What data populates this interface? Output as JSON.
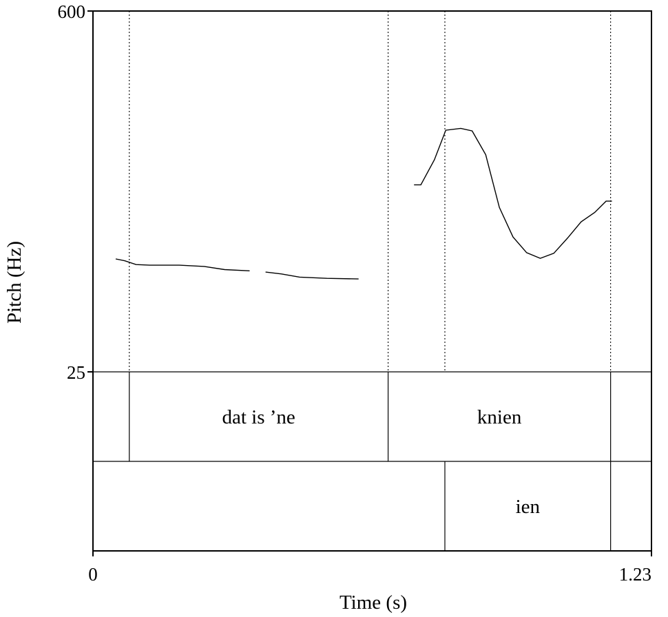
{
  "chart_data": {
    "type": "line",
    "xlabel": "Time (s)",
    "ylabel": "Pitch (Hz)",
    "xlim": [
      0,
      1.23
    ],
    "ylim": [
      25,
      600
    ],
    "xticks": [
      "0",
      "1.23"
    ],
    "yticks": [
      "25",
      "600"
    ],
    "series": [
      {
        "segments": [
          [
            [
              0.05,
              205
            ],
            [
              0.07,
              202
            ],
            [
              0.095,
              196
            ],
            [
              0.125,
              195
            ],
            [
              0.19,
              195
            ],
            [
              0.245,
              193
            ],
            [
              0.29,
              188
            ],
            [
              0.345,
              186
            ]
          ],
          [
            [
              0.38,
              184
            ],
            [
              0.415,
              181
            ],
            [
              0.455,
              176
            ],
            [
              0.515,
              174
            ],
            [
              0.585,
              173
            ]
          ],
          [
            [
              0.707,
              323
            ],
            [
              0.722,
              323
            ],
            [
              0.752,
              363
            ],
            [
              0.777,
              410
            ],
            [
              0.81,
              413
            ],
            [
              0.835,
              409
            ],
            [
              0.865,
              371
            ],
            [
              0.895,
              287
            ],
            [
              0.925,
              240
            ],
            [
              0.955,
              215
            ],
            [
              0.985,
              206
            ],
            [
              1.015,
              214
            ],
            [
              1.045,
              238
            ],
            [
              1.075,
              264
            ],
            [
              1.105,
              279
            ],
            [
              1.13,
              297
            ],
            [
              1.143,
              297
            ]
          ]
        ]
      }
    ],
    "boundaries": [
      {
        "x": 0.08,
        "tiers": [
          1
        ]
      },
      {
        "x": 0.65,
        "tiers": [
          1
        ]
      },
      {
        "x": 0.775,
        "tiers": [
          2
        ]
      },
      {
        "x": 1.14,
        "tiers": [
          1,
          2
        ]
      }
    ],
    "tiers": [
      {
        "intervals": [
          {
            "label": "dat is ’ne",
            "start": 0.08,
            "end": 0.65
          },
          {
            "label": "knien",
            "start": 0.65,
            "end": 1.14
          }
        ]
      },
      {
        "intervals": [
          {
            "label": "ien",
            "start": 0.775,
            "end": 1.14
          }
        ]
      }
    ]
  }
}
